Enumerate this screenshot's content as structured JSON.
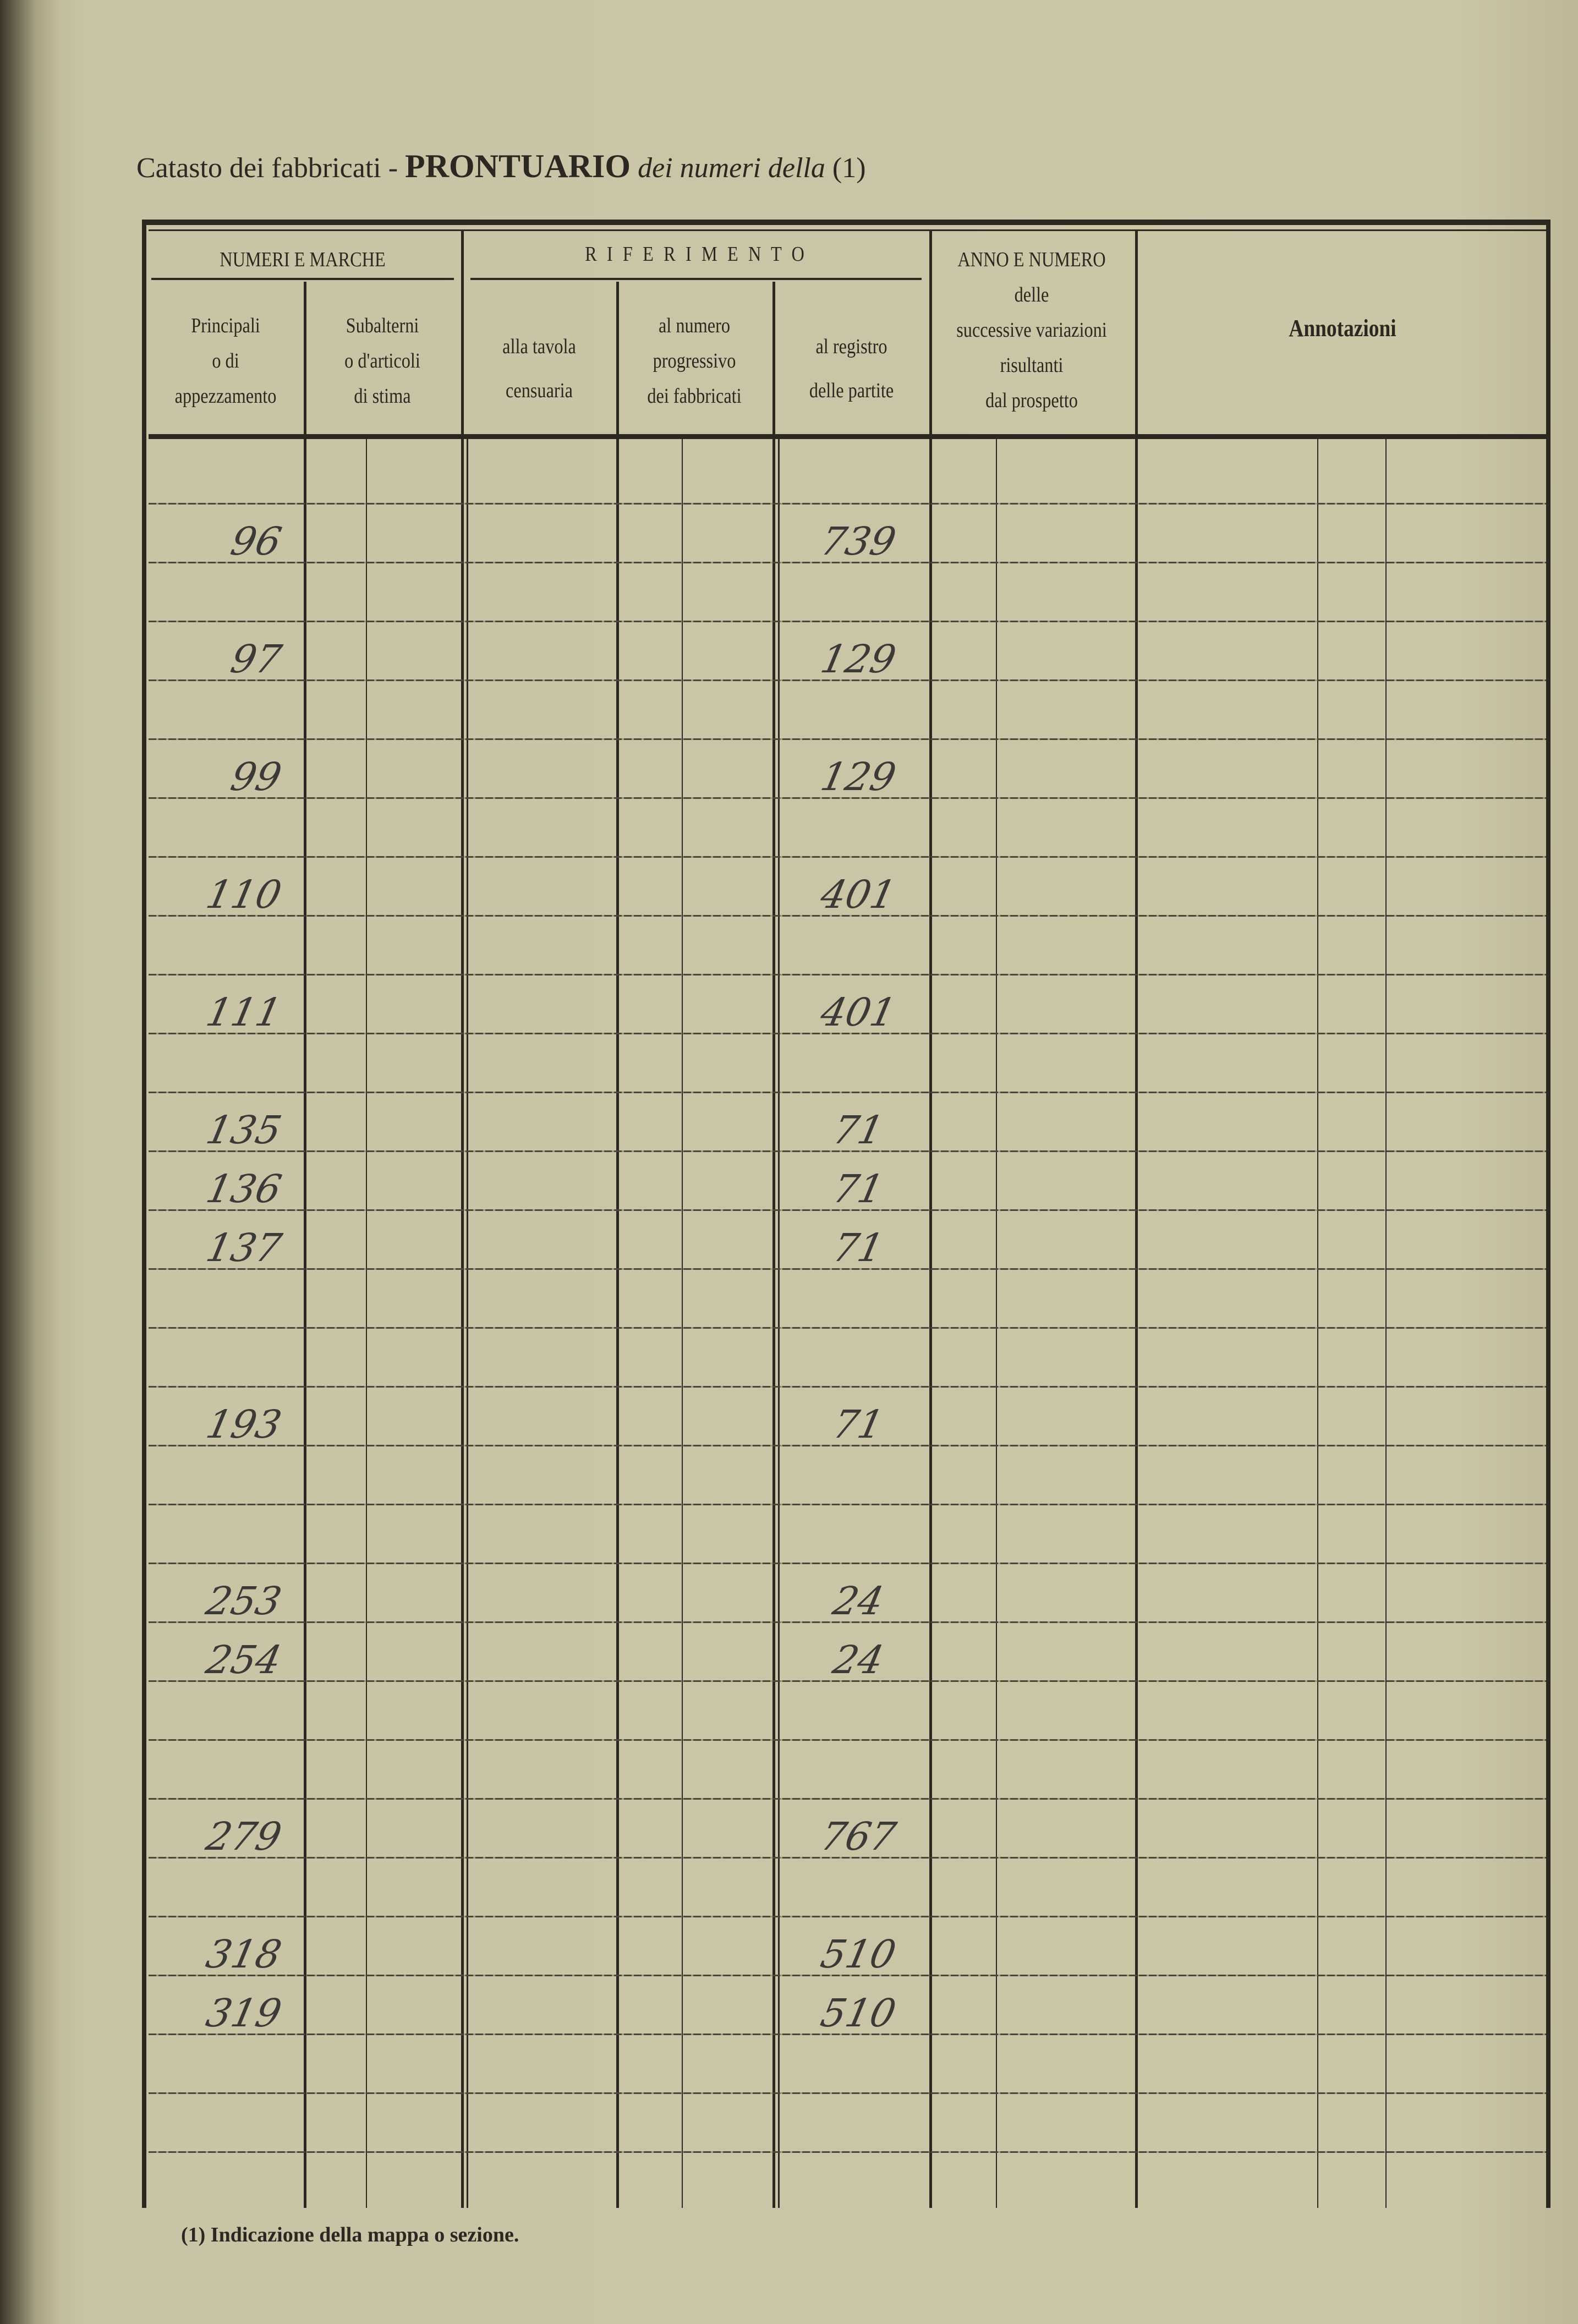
{
  "header": {
    "title_prefix": "Catasto dei fabbricati -",
    "title_bold": "PRONTUARIO",
    "title_italic": "dei numeri della",
    "title_note": "(1)"
  },
  "columns": {
    "numeri_e_marche": "NUMERI E MARCHE",
    "principali": [
      "Principali",
      "o di",
      "appezzamento"
    ],
    "subalterni": [
      "Subalterni",
      "o d'articoli",
      "di stima"
    ],
    "riferimento": "R I F E R I M E N T O",
    "tavola": [
      "alla tavola",
      "censuaria"
    ],
    "numero": [
      "al numero",
      "progressivo",
      "dei fabbricati"
    ],
    "registro": [
      "al registro",
      "delle partite"
    ],
    "anno_numero": [
      "ANNO E NUMERO",
      "delle",
      "successive variazioni",
      "risultanti",
      "dal prospetto"
    ],
    "annotazioni": "Annotazioni"
  },
  "rows": [
    {
      "principale": "",
      "registro": ""
    },
    {
      "principale": "96",
      "registro": "739"
    },
    {
      "principale": "",
      "registro": ""
    },
    {
      "principale": "97",
      "registro": "129"
    },
    {
      "principale": "",
      "registro": ""
    },
    {
      "principale": "99",
      "registro": "129"
    },
    {
      "principale": "",
      "registro": ""
    },
    {
      "principale": "110",
      "registro": "401"
    },
    {
      "principale": "",
      "registro": ""
    },
    {
      "principale": "111",
      "registro": "401"
    },
    {
      "principale": "",
      "registro": ""
    },
    {
      "principale": "135",
      "registro": "71"
    },
    {
      "principale": "136",
      "registro": "71"
    },
    {
      "principale": "137",
      "registro": "71"
    },
    {
      "principale": "",
      "registro": ""
    },
    {
      "principale": "",
      "registro": ""
    },
    {
      "principale": "193",
      "registro": "71"
    },
    {
      "principale": "",
      "registro": ""
    },
    {
      "principale": "",
      "registro": ""
    },
    {
      "principale": "253",
      "registro": "24"
    },
    {
      "principale": "254",
      "registro": "24"
    },
    {
      "principale": "",
      "registro": ""
    },
    {
      "principale": "",
      "registro": ""
    },
    {
      "principale": "279",
      "registro": "767"
    },
    {
      "principale": "",
      "registro": ""
    },
    {
      "principale": "318",
      "registro": "510"
    },
    {
      "principale": "319",
      "registro": "510"
    },
    {
      "principale": "",
      "registro": ""
    },
    {
      "principale": "",
      "registro": ""
    }
  ],
  "footnote": "(1) Indicazione della mappa o sezione."
}
